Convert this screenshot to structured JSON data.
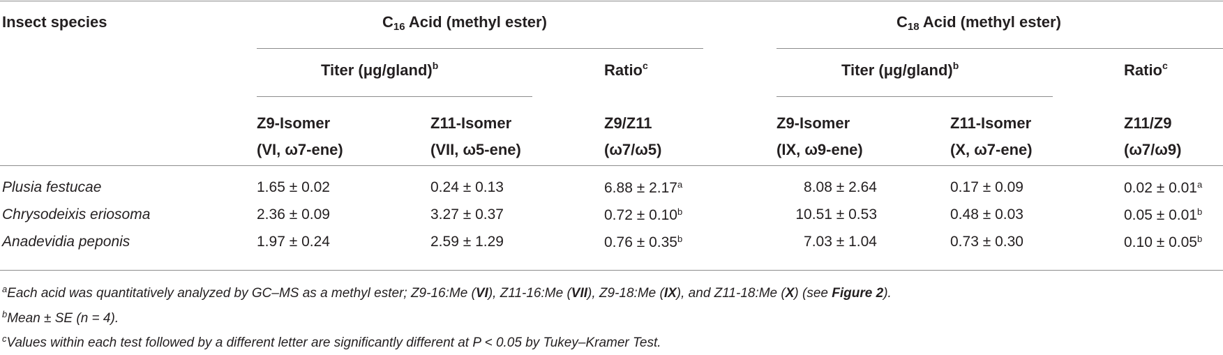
{
  "table": {
    "col_header_species": "Insect species",
    "c16": {
      "prefix": "C",
      "sub": "16",
      "rest": " Acid (methyl ester)"
    },
    "c18": {
      "prefix": "C",
      "sub": "18",
      "rest": " Acid (methyl ester)"
    },
    "titer_label": "Titer (μg/gland)",
    "titer_sup": "b",
    "ratio_label": "Ratio",
    "ratio_sup": "c",
    "sub_headers": {
      "c16_z9": [
        "Z9-Isomer",
        "(VI, ω7-ene)"
      ],
      "c16_z11": [
        "Z11-Isomer",
        "(VII, ω5-ene)"
      ],
      "c16_ratio": [
        "Z9/Z11",
        "(ω7/ω5)"
      ],
      "c18_z9": [
        "Z9-Isomer",
        "(IX, ω9-ene)"
      ],
      "c18_z11": [
        "Z11-Isomer",
        "(X, ω7-ene)"
      ],
      "c18_ratio": [
        "Z11/Z9",
        "(ω7/ω9)"
      ]
    },
    "rows": [
      {
        "species": "Plusia festucae",
        "c16_z9": "1.65 ± 0.02",
        "c16_z11": "0.24 ± 0.13",
        "c16_ratio": "6.88 ± 2.17",
        "c16_ratio_sup": "a",
        "c18_z9": "8.08 ± 2.64",
        "c18_z11": "0.17 ± 0.09",
        "c18_ratio": "0.02 ± 0.01",
        "c18_ratio_sup": "a"
      },
      {
        "species": "Chrysodeixis eriosoma",
        "c16_z9": "2.36 ± 0.09",
        "c16_z11": "3.27 ± 0.37",
        "c16_ratio": "0.72 ± 0.10",
        "c16_ratio_sup": "b",
        "c18_z9": "10.51 ± 0.53",
        "c18_z11": "0.48 ± 0.03",
        "c18_ratio": "0.05 ± 0.01",
        "c18_ratio_sup": "b"
      },
      {
        "species": "Anadevidia peponis",
        "c16_z9": "1.97 ± 0.24",
        "c16_z11": "2.59 ± 1.29",
        "c16_ratio": "0.76 ± 0.35",
        "c16_ratio_sup": "b",
        "c18_z9": "7.03 ± 1.04",
        "c18_z11": "0.73 ± 0.30",
        "c18_ratio": "0.10 ± 0.05",
        "c18_ratio_sup": "b"
      }
    ]
  },
  "footnotes": {
    "a": {
      "mark": "a",
      "p1": "Each acid was quantitatively analyzed by GC–MS as a methyl ester; Z9-16:Me (",
      "b1": "VI",
      "p2": "), Z11-16:Me (",
      "b2": "VII",
      "p3": "), Z9-18:Me (",
      "b3": "IX",
      "p4": "), and Z11-18:Me (",
      "b4": "X",
      "p5": ") (see ",
      "b5": "Figure 2",
      "p6": ")."
    },
    "b": {
      "mark": "b",
      "text": "Mean ± SE (n = 4)."
    },
    "c": {
      "mark": "c",
      "text": "Values within each test followed by a different letter are significantly different at P < 0.05 by Tukey–Kramer Test."
    }
  }
}
